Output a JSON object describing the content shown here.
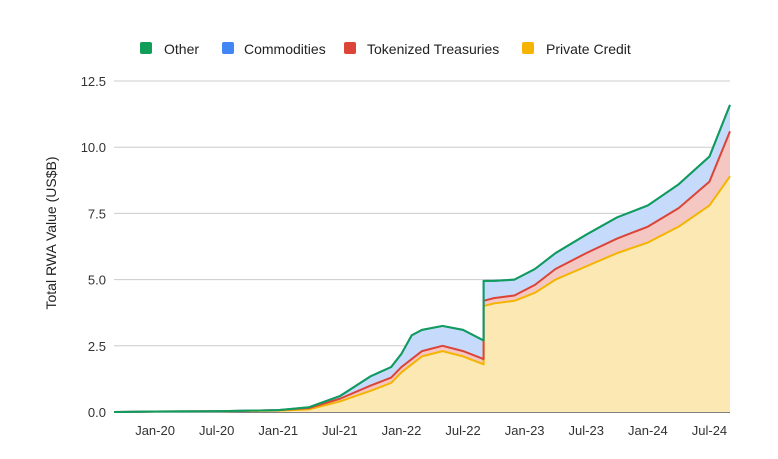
{
  "chart_data": {
    "type": "area",
    "stacked": true,
    "ylabel": "Total RWA Value (US$B)",
    "xlabel": "",
    "ylim": [
      0,
      12.5
    ],
    "yticks": [
      "0.0",
      "2.5",
      "5.0",
      "7.5",
      "10.0",
      "12.5"
    ],
    "xtick_labels": [
      "Jan-20",
      "Jul-20",
      "Jan-21",
      "Jul-21",
      "Jan-22",
      "Jul-22",
      "Jan-23",
      "Jul-23",
      "Jan-24",
      "Jul-24"
    ],
    "x_range": [
      "2019-09",
      "2024-09"
    ],
    "grid": true,
    "legend_position": "top",
    "x": [
      "2019-09",
      "2020-01",
      "2020-07",
      "2021-01",
      "2021-04",
      "2021-07",
      "2021-10",
      "2021-12",
      "2022-01",
      "2022-02",
      "2022-03",
      "2022-05",
      "2022-07",
      "2022-09",
      "2022-09",
      "2022-10",
      "2022-12",
      "2023-02",
      "2023-04",
      "2023-07",
      "2023-10",
      "2024-01",
      "2024-04",
      "2024-07",
      "2024-09"
    ],
    "series": [
      {
        "name": "Private Credit",
        "color": "#f4b400",
        "fill": "#fce8b2",
        "values": [
          0.0,
          0.02,
          0.03,
          0.05,
          0.1,
          0.4,
          0.8,
          1.1,
          1.5,
          1.8,
          2.1,
          2.3,
          2.1,
          1.8,
          4.0,
          4.1,
          4.2,
          4.5,
          5.0,
          5.5,
          6.0,
          6.4,
          7.0,
          7.8,
          8.9
        ]
      },
      {
        "name": "Tokenized Treasuries",
        "color": "#db4437",
        "fill": "#f4c7c3",
        "values": [
          0.0,
          0.0,
          0.0,
          0.02,
          0.05,
          0.1,
          0.2,
          0.2,
          0.2,
          0.2,
          0.2,
          0.2,
          0.2,
          0.2,
          0.2,
          0.2,
          0.2,
          0.3,
          0.4,
          0.5,
          0.55,
          0.6,
          0.7,
          0.9,
          1.7
        ]
      },
      {
        "name": "Commodities",
        "color": "#4285f4",
        "fill": "#c6dafc",
        "values": [
          0.0,
          0.0,
          0.0,
          0.0,
          0.03,
          0.1,
          0.35,
          0.4,
          0.5,
          0.9,
          0.8,
          0.75,
          0.8,
          0.7,
          0.75,
          0.65,
          0.6,
          0.6,
          0.6,
          0.7,
          0.8,
          0.8,
          0.9,
          0.95,
          1.0
        ]
      },
      {
        "name": "Other",
        "color": "#0f9d58",
        "fill": "#b7e1cd",
        "values": [
          0.0,
          0.0,
          0.0,
          0.0,
          0.0,
          0.0,
          0.0,
          0.0,
          0.0,
          0.0,
          0.0,
          0.0,
          0.0,
          0.0,
          0.0,
          0.0,
          0.0,
          0.0,
          0.0,
          0.0,
          0.0,
          0.0,
          0.0,
          0.0,
          0.0
        ]
      }
    ]
  },
  "legend": [
    {
      "label": "Other",
      "color": "#0f9d58"
    },
    {
      "label": "Commodities",
      "color": "#4285f4"
    },
    {
      "label": "Tokenized Treasuries",
      "color": "#db4437"
    },
    {
      "label": "Private Credit",
      "color": "#f4b400"
    }
  ]
}
